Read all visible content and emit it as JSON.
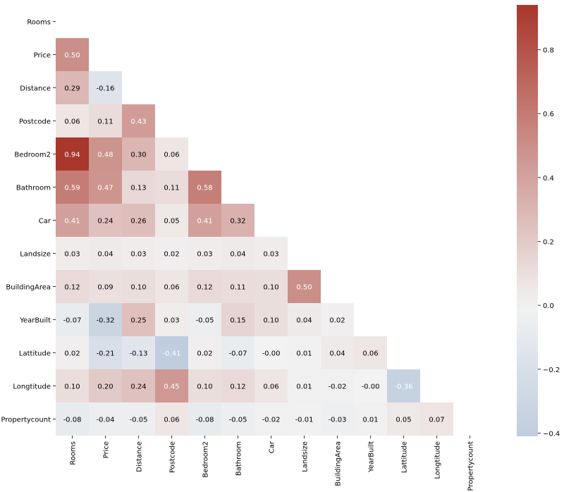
{
  "chart_data": {
    "type": "heatmap",
    "title": "",
    "xlabel": "",
    "ylabel": "",
    "variables": [
      "Rooms",
      "Price",
      "Distance",
      "Postcode",
      "Bedroom2",
      "Bathroom",
      "Car",
      "Landsize",
      "BuildingArea",
      "YearBuilt",
      "Lattitude",
      "Longtitude",
      "Propertycount"
    ],
    "mask": "upper-triangle-including-diagonal",
    "values": [
      [],
      [
        0.5
      ],
      [
        0.29,
        -0.16
      ],
      [
        0.06,
        0.11,
        0.43
      ],
      [
        0.94,
        0.48,
        0.3,
        0.06
      ],
      [
        0.59,
        0.47,
        0.13,
        0.11,
        0.58
      ],
      [
        0.41,
        0.24,
        0.26,
        0.05,
        0.41,
        0.32
      ],
      [
        0.03,
        0.04,
        0.03,
        0.02,
        0.03,
        0.04,
        0.03
      ],
      [
        0.12,
        0.09,
        0.1,
        0.06,
        0.12,
        0.11,
        0.1,
        0.5
      ],
      [
        -0.07,
        -0.32,
        0.25,
        0.03,
        -0.05,
        0.15,
        0.1,
        0.04,
        0.02
      ],
      [
        0.02,
        -0.21,
        -0.13,
        -0.41,
        0.02,
        -0.07,
        -0.0,
        0.01,
        0.04,
        0.06
      ],
      [
        0.1,
        0.2,
        0.24,
        0.45,
        0.1,
        0.12,
        0.06,
        0.01,
        -0.02,
        -0.0,
        -0.36
      ],
      [
        -0.08,
        -0.04,
        -0.05,
        0.06,
        -0.08,
        -0.05,
        -0.02,
        -0.01,
        -0.03,
        0.01,
        0.05,
        0.07
      ]
    ],
    "colorbar": {
      "vmin": -0.41,
      "vmax": 0.94,
      "ticks": [
        -0.4,
        -0.2,
        0.0,
        0.2,
        0.4,
        0.6,
        0.8
      ],
      "tick_labels": [
        "−0.4",
        "−0.2",
        "0.0",
        "0.2",
        "0.4",
        "0.6",
        "0.8"
      ],
      "colors": {
        "negative": "#7f9ec4",
        "center": "#f2f2f2",
        "positive": "#a9372c"
      }
    },
    "annotation_colors": {
      "light": "#ffffff",
      "dark": "#000000"
    }
  }
}
